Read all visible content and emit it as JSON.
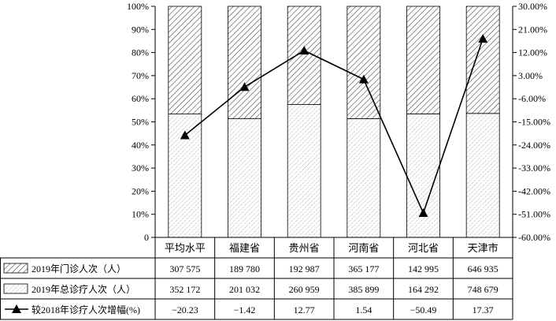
{
  "chart_data": {
    "type": "bar",
    "stacked": true,
    "normalized": true,
    "categories": [
      "平均水平",
      "福建省",
      "贵州省",
      "河南省",
      "河北省",
      "天津市"
    ],
    "series": [
      {
        "name": "2019年门诊人次（人）",
        "pattern": "diagonal-hatch",
        "values": [
          307575,
          189780,
          192987,
          365177,
          142995,
          646935
        ],
        "display": [
          "307 575",
          "189 780",
          "192 987",
          "365 177",
          "142 995",
          "646 935"
        ]
      },
      {
        "name": "2019年总诊疗人次（人）",
        "pattern": "dotted-hatch",
        "values": [
          352172,
          201032,
          260959,
          385899,
          164292,
          748679
        ],
        "display": [
          "352 172",
          "201 032",
          "260 959",
          "385 899",
          "164 292",
          "748 679"
        ]
      },
      {
        "name": "较2018年诊疗人次增幅(%)",
        "type": "line",
        "axis": "right",
        "marker": "triangle",
        "values": [
          -20.23,
          -1.42,
          12.77,
          1.54,
          -50.49,
          17.37
        ],
        "display": [
          "−20.23",
          "−1.42",
          "12.77",
          "1.54",
          "−50.49",
          "17.37"
        ]
      }
    ],
    "y_left": {
      "range": [
        0,
        100
      ],
      "ticks": [
        "0",
        "10%",
        "20%",
        "30%",
        "40%",
        "50%",
        "60%",
        "70%",
        "80%",
        "90%",
        "100%"
      ]
    },
    "y_right": {
      "range": [
        -60,
        30
      ],
      "ticks": [
        "-60.00%",
        "-51.00%",
        "-42.00%",
        "-33.00%",
        "-24.00%",
        "-15.00%",
        "-6.00%",
        "3.00%",
        "12.00%",
        "21.00%",
        "30.00%"
      ]
    },
    "grid": false,
    "legend": "table-below",
    "colors": {
      "ink": "#000000",
      "hatch": "#555555",
      "dots": "#8a8a8a"
    }
  }
}
